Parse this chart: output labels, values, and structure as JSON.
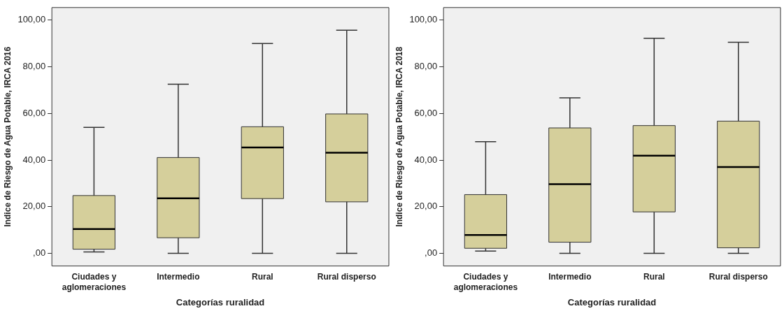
{
  "chart_data": [
    {
      "type": "box",
      "xlabel": "Categorías ruralidad",
      "ylabel": "Indice de Riesgo de Agua Potable, IRCA 2016",
      "color": "#d5cf9b",
      "grid": false,
      "categories": [
        "Ciudades y aglomeraciones",
        "Intermedio",
        "Rural",
        "Rural disperso"
      ],
      "boxes": [
        {
          "low": 0.6,
          "q1": 1.8,
          "median": 10.4,
          "q3": 24.8,
          "high": 54
        },
        {
          "low": 0,
          "q1": 6.7,
          "median": 23.6,
          "q3": 41.1,
          "high": 72.5
        },
        {
          "low": 0,
          "q1": 23.5,
          "median": 45.4,
          "q3": 54.3,
          "high": 90
        },
        {
          "low": 0,
          "q1": 22.1,
          "median": 43.2,
          "q3": 59.8,
          "high": 95.7
        }
      ],
      "ylim": [
        -5.4,
        105.4
      ],
      "yticks": [
        {
          "value": 0,
          "label": ",00"
        },
        {
          "value": 20,
          "label": "20,00"
        },
        {
          "value": 40,
          "label": "40,00"
        },
        {
          "value": 60,
          "label": "60,00"
        },
        {
          "value": 80,
          "label": "80,00"
        },
        {
          "value": 100,
          "label": "100,00"
        }
      ]
    },
    {
      "type": "box",
      "xlabel": "Categorías ruralidad",
      "ylabel": "Indice de Riesgo de Agua Potable, IRCA 2018",
      "color": "#d5cf9b",
      "grid": false,
      "categories": [
        "Ciudades y aglomeraciones",
        "Intermedio",
        "Rural",
        "Rural disperso"
      ],
      "boxes": [
        {
          "low": 1,
          "q1": 2.2,
          "median": 7.9,
          "q3": 25.2,
          "high": 47.9
        },
        {
          "low": 0,
          "q1": 4.8,
          "median": 29.7,
          "q3": 53.8,
          "high": 66.7
        },
        {
          "low": 0,
          "q1": 17.8,
          "median": 41.9,
          "q3": 54.8,
          "high": 92.2
        },
        {
          "low": 0,
          "q1": 2.4,
          "median": 37,
          "q3": 56.7,
          "high": 90.5
        }
      ],
      "ylim": [
        -5.4,
        105.4
      ],
      "yticks": [
        {
          "value": 0,
          "label": ",00"
        },
        {
          "value": 20,
          "label": "20,00"
        },
        {
          "value": 40,
          "label": "40,00"
        },
        {
          "value": 60,
          "label": "60,00"
        },
        {
          "value": 80,
          "label": "80,00"
        },
        {
          "value": 100,
          "label": "100,00"
        }
      ]
    }
  ]
}
